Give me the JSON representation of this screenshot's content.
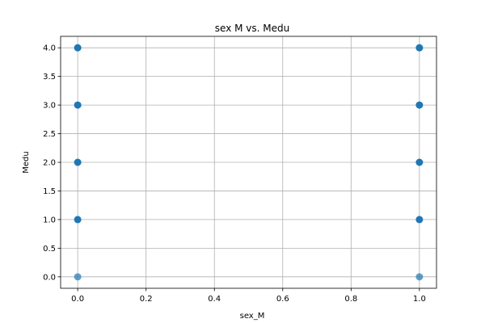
{
  "chart_data": {
    "type": "scatter",
    "title": "sex M vs. Medu",
    "xlabel": "sex_M",
    "ylabel": "Medu",
    "xlim": [
      -0.05,
      1.05
    ],
    "ylim": [
      -0.2,
      4.2
    ],
    "x_ticks": [
      0.0,
      0.2,
      0.4,
      0.6,
      0.8,
      1.0
    ],
    "x_tick_labels": [
      "0.0",
      "0.2",
      "0.4",
      "0.6",
      "0.8",
      "1.0"
    ],
    "y_ticks": [
      0.0,
      0.5,
      1.0,
      1.5,
      2.0,
      2.5,
      3.0,
      3.5,
      4.0
    ],
    "y_tick_labels": [
      "0.0",
      "0.5",
      "1.0",
      "1.5",
      "2.0",
      "2.5",
      "3.0",
      "3.5",
      "4.0"
    ],
    "grid": true,
    "point_color": "#1f77b4",
    "points": [
      {
        "x": 0,
        "y": 0,
        "alpha": 0.7
      },
      {
        "x": 0,
        "y": 1,
        "alpha": 1.0
      },
      {
        "x": 0,
        "y": 2,
        "alpha": 1.0
      },
      {
        "x": 0,
        "y": 3,
        "alpha": 1.0
      },
      {
        "x": 0,
        "y": 4,
        "alpha": 1.0
      },
      {
        "x": 1,
        "y": 0,
        "alpha": 0.7
      },
      {
        "x": 1,
        "y": 1,
        "alpha": 1.0
      },
      {
        "x": 1,
        "y": 2,
        "alpha": 1.0
      },
      {
        "x": 1,
        "y": 3,
        "alpha": 1.0
      },
      {
        "x": 1,
        "y": 4,
        "alpha": 1.0
      }
    ]
  }
}
